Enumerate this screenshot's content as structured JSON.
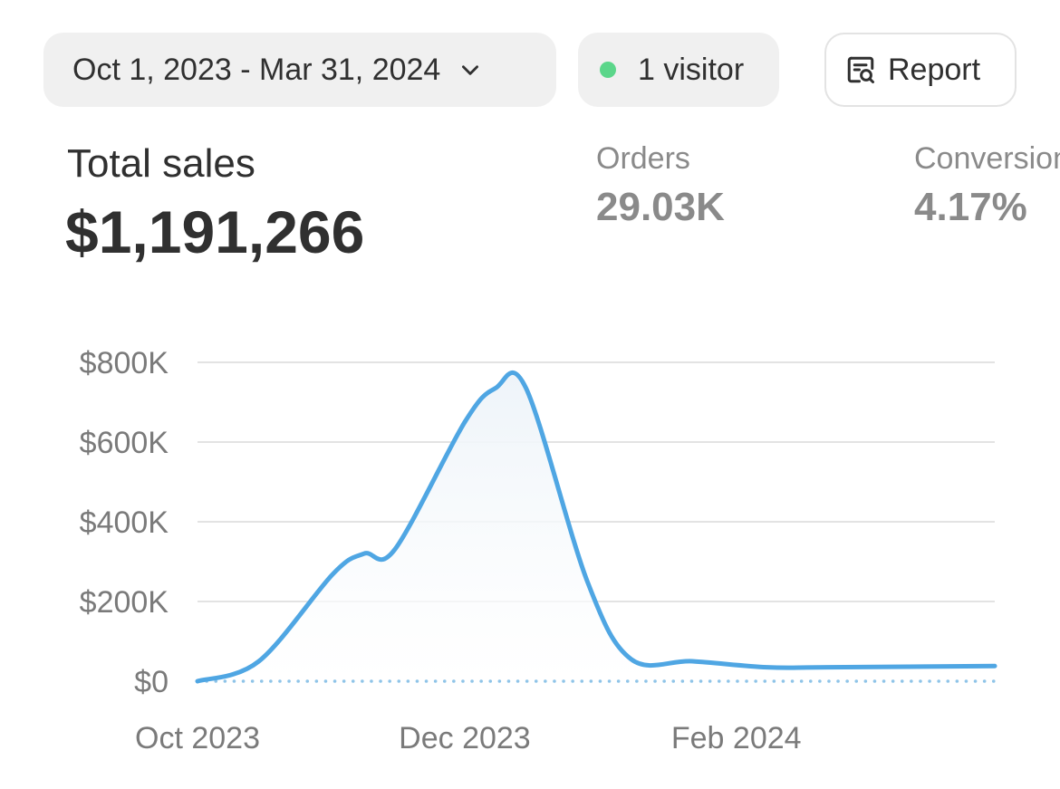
{
  "filters": {
    "date_range": "Oct 1, 2023 - Mar 31, 2024",
    "visitors": "1 visitor",
    "report_label": "Report"
  },
  "summary": {
    "total_sales_label": "Total sales",
    "total_sales_value": "$1,191,266",
    "orders_label": "Orders",
    "orders_value": "29.03K",
    "conversion_label": "Conversion",
    "conversion_value": "4.17%"
  },
  "colors": {
    "line": "#4fa6e3",
    "status_dot": "#5bd68a",
    "grid": "#e3e3e3"
  },
  "chart_data": {
    "type": "line",
    "title": "",
    "xlabel": "",
    "ylabel": "",
    "x": [
      "2023-10-01",
      "2023-10-15",
      "2023-11-01",
      "2023-11-08",
      "2023-11-15",
      "2023-12-01",
      "2023-12-08",
      "2023-12-15",
      "2023-12-29",
      "2024-01-08",
      "2024-01-22",
      "2024-02-08",
      "2024-02-22",
      "2024-03-31"
    ],
    "values": [
      0,
      50000,
      270000,
      320000,
      330000,
      650000,
      735000,
      735000,
      250000,
      55000,
      50000,
      35000,
      35000,
      38000
    ],
    "x_ticks": [
      "Oct 2023",
      "Dec 2023",
      "Feb 2024"
    ],
    "y_ticks": [
      "$0",
      "$200K",
      "$400K",
      "$600K",
      "$800K"
    ],
    "y_tick_values": [
      0,
      200000,
      400000,
      600000,
      800000
    ],
    "ylim": [
      0,
      800000
    ],
    "xlim": [
      "2023-10-01",
      "2024-03-31"
    ],
    "grid": true,
    "legend": "none",
    "baseline_style": "dotted"
  }
}
